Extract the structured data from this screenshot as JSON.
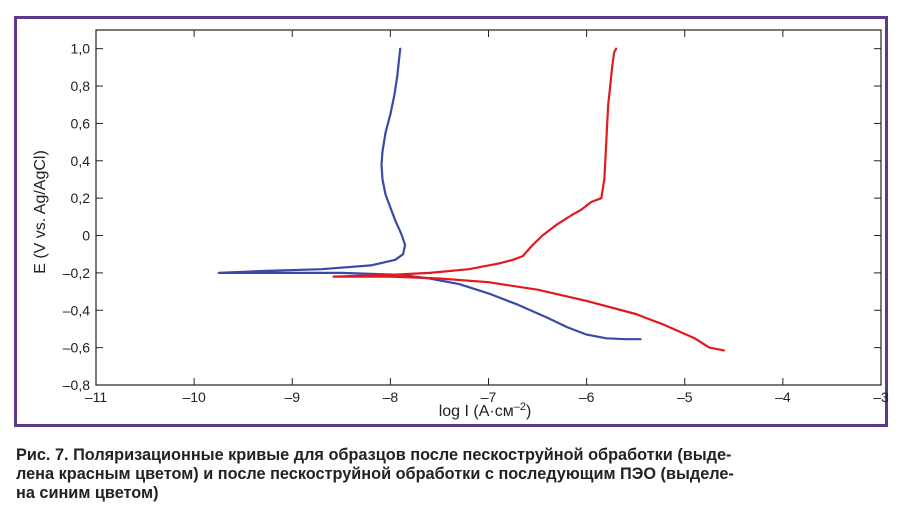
{
  "chart_data": {
    "type": "line",
    "title": "",
    "xlabel": "log I (A·см",
    "xlabel_sup": "–2",
    "xlabel_close": ")",
    "ylabel": "E (V vs. Ag/AgCl)",
    "xlim": [
      -11,
      -3
    ],
    "ylim": [
      -0.8,
      1.1
    ],
    "x_ticks": [
      -11,
      -10,
      -9,
      -8,
      -7,
      -6,
      -5,
      -4,
      -3
    ],
    "x_tick_labels": [
      "–11",
      "–10",
      "–9",
      "–8",
      "–7",
      "–6",
      "–5",
      "–4",
      "–3"
    ],
    "y_ticks": [
      1.0,
      0.8,
      0.6,
      0.4,
      0.2,
      0,
      -0.2,
      -0.4,
      -0.6,
      -0.8
    ],
    "y_tick_labels": [
      "1,0",
      "0,8",
      "0,6",
      "0,4",
      "0,2",
      "0",
      "–0,2",
      "–0,4",
      "–0,6",
      "–0,8"
    ],
    "grid": false,
    "series": [
      {
        "color": "#3a4aa8",
        "points": [
          [
            -7.9,
            1.0
          ],
          [
            -7.93,
            0.85
          ],
          [
            -7.96,
            0.75
          ],
          [
            -8.0,
            0.65
          ],
          [
            -8.05,
            0.55
          ],
          [
            -8.08,
            0.45
          ],
          [
            -8.09,
            0.38
          ],
          [
            -8.08,
            0.3
          ],
          [
            -8.05,
            0.22
          ],
          [
            -8.0,
            0.15
          ],
          [
            -7.95,
            0.08
          ],
          [
            -7.89,
            0.01
          ],
          [
            -7.85,
            -0.05
          ],
          [
            -7.87,
            -0.1
          ],
          [
            -7.95,
            -0.13
          ],
          [
            -8.2,
            -0.16
          ],
          [
            -8.7,
            -0.18
          ],
          [
            -9.3,
            -0.19
          ],
          [
            -9.75,
            -0.2
          ],
          [
            -9.2,
            -0.2
          ],
          [
            -8.5,
            -0.2
          ],
          [
            -7.9,
            -0.21
          ],
          [
            -7.6,
            -0.23
          ],
          [
            -7.3,
            -0.26
          ],
          [
            -7.0,
            -0.31
          ],
          [
            -6.7,
            -0.37
          ],
          [
            -6.4,
            -0.44
          ],
          [
            -6.2,
            -0.49
          ],
          [
            -6.0,
            -0.53
          ],
          [
            -5.8,
            -0.55
          ],
          [
            -5.6,
            -0.555
          ],
          [
            -5.45,
            -0.555
          ]
        ]
      },
      {
        "color": "#e2191e",
        "points": [
          [
            -5.7,
            1.0
          ],
          [
            -5.72,
            0.98
          ],
          [
            -5.74,
            0.9
          ],
          [
            -5.76,
            0.8
          ],
          [
            -5.78,
            0.7
          ],
          [
            -5.79,
            0.6
          ],
          [
            -5.8,
            0.5
          ],
          [
            -5.81,
            0.4
          ],
          [
            -5.82,
            0.3
          ],
          [
            -5.85,
            0.2
          ],
          [
            -5.95,
            0.18
          ],
          [
            -6.05,
            0.14
          ],
          [
            -6.15,
            0.11
          ],
          [
            -6.3,
            0.06
          ],
          [
            -6.45,
            0.0
          ],
          [
            -6.55,
            -0.05
          ],
          [
            -6.65,
            -0.11
          ],
          [
            -6.75,
            -0.13
          ],
          [
            -6.9,
            -0.15
          ],
          [
            -7.2,
            -0.18
          ],
          [
            -7.6,
            -0.2
          ],
          [
            -8.0,
            -0.21
          ],
          [
            -8.58,
            -0.22
          ],
          [
            -8.0,
            -0.22
          ],
          [
            -7.5,
            -0.23
          ],
          [
            -7.0,
            -0.25
          ],
          [
            -6.5,
            -0.29
          ],
          [
            -6.0,
            -0.35
          ],
          [
            -5.5,
            -0.42
          ],
          [
            -5.2,
            -0.48
          ],
          [
            -4.9,
            -0.55
          ],
          [
            -4.75,
            -0.6
          ],
          [
            -4.6,
            -0.615
          ]
        ]
      }
    ]
  },
  "caption": {
    "line1": "Рис. 7. Поляризационные кривые для образцов после пескоструйной обработки (выде-",
    "line2": "лена красным цветом) и после пескоструйной обработки с последующим ПЭО (выделе-",
    "line3": "на синим цветом)"
  },
  "colors": {
    "frame": "#5b3a8c",
    "axis": "#222222"
  }
}
